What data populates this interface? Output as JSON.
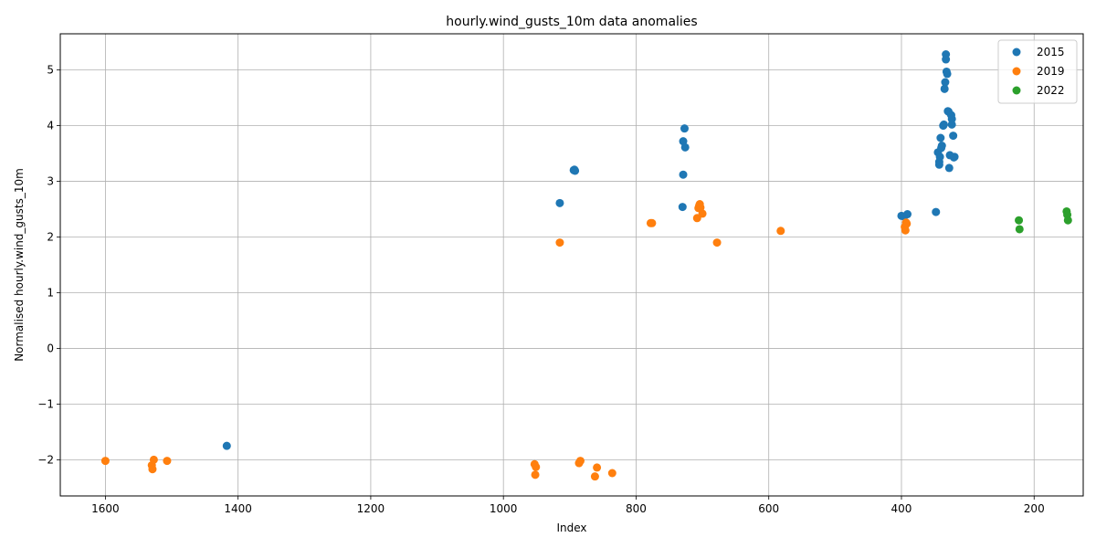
{
  "chart_data": {
    "type": "scatter",
    "title": "hourly.wind_gusts_10m data anomalies",
    "xlabel": "Index",
    "ylabel": "Normalised hourly.wind_gusts_10m",
    "xlim": [
      1668,
      126
    ],
    "ylim": [
      -2.65,
      5.65
    ],
    "x_inverted": true,
    "grid": true,
    "legend_position": "upper right",
    "xticks": [
      1600,
      1400,
      1200,
      1000,
      800,
      600,
      400,
      200
    ],
    "xtick_labels": [
      "1600",
      "1400",
      "1200",
      "1000",
      "800",
      "600",
      "400",
      "200"
    ],
    "yticks": [
      -2,
      -1,
      0,
      1,
      2,
      3,
      4,
      5
    ],
    "ytick_labels": [
      "−2",
      "−1",
      "0",
      "1",
      "2",
      "3",
      "4",
      "5"
    ],
    "series": [
      {
        "name": "2015",
        "color": "#1f77b4",
        "points": [
          [
            1417,
            -1.75
          ],
          [
            915,
            2.61
          ],
          [
            894,
            3.2
          ],
          [
            893,
            3.21
          ],
          [
            892,
            3.19
          ],
          [
            730,
            2.54
          ],
          [
            729,
            3.12
          ],
          [
            729,
            3.72
          ],
          [
            727,
            3.95
          ],
          [
            726,
            3.61
          ],
          [
            400,
            2.38
          ],
          [
            396,
            2.37
          ],
          [
            391,
            2.41
          ],
          [
            348,
            2.45
          ],
          [
            345,
            3.52
          ],
          [
            343,
            3.3
          ],
          [
            343,
            3.35
          ],
          [
            342,
            3.44
          ],
          [
            341,
            3.78
          ],
          [
            340,
            3.6
          ],
          [
            339,
            3.64
          ],
          [
            337,
            4.0
          ],
          [
            336,
            4.02
          ],
          [
            335,
            4.66
          ],
          [
            334,
            4.78
          ],
          [
            333,
            5.28
          ],
          [
            333,
            5.19
          ],
          [
            332,
            4.97
          ],
          [
            331,
            4.93
          ],
          [
            330,
            4.26
          ],
          [
            329,
            4.25
          ],
          [
            328,
            3.24
          ],
          [
            327,
            3.47
          ],
          [
            325,
            4.19
          ],
          [
            324,
            4.12
          ],
          [
            324,
            4.02
          ],
          [
            322,
            3.82
          ],
          [
            321,
            3.43
          ],
          [
            320,
            3.44
          ]
        ]
      },
      {
        "name": "2019",
        "color": "#ff7f0e",
        "points": [
          [
            1600,
            -2.02
          ],
          [
            1530,
            -2.1
          ],
          [
            1529,
            -2.17
          ],
          [
            1527,
            -2.0
          ],
          [
            1507,
            -2.02
          ],
          [
            953,
            -2.08
          ],
          [
            952,
            -2.27
          ],
          [
            951,
            -2.13
          ],
          [
            915,
            1.9
          ],
          [
            886,
            -2.06
          ],
          [
            884,
            -2.02
          ],
          [
            862,
            -2.3
          ],
          [
            859,
            -2.14
          ],
          [
            836,
            -2.24
          ],
          [
            778,
            2.25
          ],
          [
            776,
            2.25
          ],
          [
            708,
            2.34
          ],
          [
            706,
            2.52
          ],
          [
            705,
            2.56
          ],
          [
            704,
            2.59
          ],
          [
            703,
            2.53
          ],
          [
            700,
            2.42
          ],
          [
            678,
            1.9
          ],
          [
            582,
            2.11
          ],
          [
            395,
            2.18
          ],
          [
            394,
            2.12
          ],
          [
            393,
            2.26
          ],
          [
            392,
            2.24
          ]
        ]
      },
      {
        "name": "2022",
        "color": "#2ca02c",
        "points": [
          [
            223,
            2.3
          ],
          [
            222,
            2.14
          ],
          [
            151,
            2.46
          ],
          [
            150,
            2.4
          ],
          [
            149,
            2.3
          ]
        ]
      }
    ]
  }
}
